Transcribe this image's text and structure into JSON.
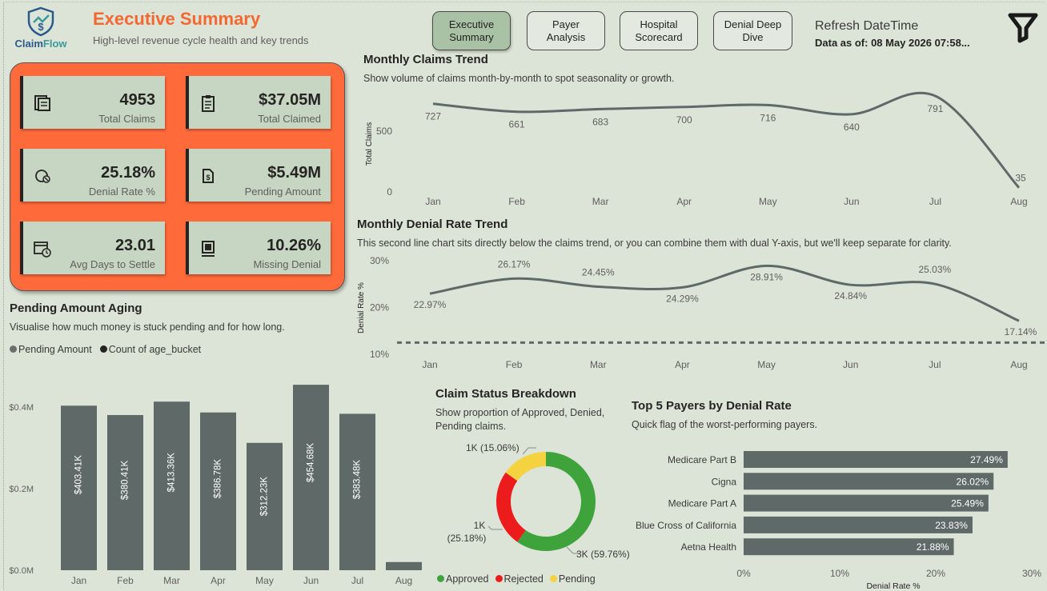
{
  "header": {
    "logo_text_a": "Claim",
    "logo_text_b": "Flow",
    "title": "Executive Summary",
    "subtitle": "High-level revenue cycle health and key trends",
    "refresh_title": "Refresh DateTime",
    "refresh_value": "Data as of: 08 May 2026 07:58..."
  },
  "nav": [
    {
      "label_line1": "Executive",
      "label_line2": "Summary",
      "active": true
    },
    {
      "label_line1": "Payer Analysis",
      "label_line2": "",
      "active": false
    },
    {
      "label_line1": "Hospital",
      "label_line2": "Scorecard",
      "active": false
    },
    {
      "label_line1": "Denial Deep",
      "label_line2": "Dive",
      "active": false
    }
  ],
  "kpis": [
    {
      "value": "4953",
      "label": "Total Claims",
      "icon": "claims-icon"
    },
    {
      "value": "$37.05M",
      "label": "Total Claimed",
      "icon": "clipboard-icon"
    },
    {
      "value": "25.18%",
      "label": "Denial Rate %",
      "icon": "denial-icon"
    },
    {
      "value": "$5.49M",
      "label": "Pending Amount",
      "icon": "pending-doc-icon"
    },
    {
      "value": "23.01",
      "label": "Avg Days to Settle",
      "icon": "calendar-clock-icon"
    },
    {
      "value": "10.26%",
      "label": "Missing Denial",
      "icon": "missing-icon"
    }
  ],
  "claims_trend": {
    "title": "Monthly Claims Trend",
    "subtitle": "Show volume of claims month-by-month to spot seasonality or growth.",
    "chart_data": {
      "type": "line",
      "categories": [
        "Jan",
        "Feb",
        "Mar",
        "Apr",
        "May",
        "Jun",
        "Jul",
        "Aug"
      ],
      "values": [
        727,
        661,
        683,
        700,
        716,
        640,
        791,
        35
      ],
      "data_labels": [
        "727",
        "661",
        "683",
        "700",
        "716",
        "640",
        "791",
        "35"
      ],
      "ylabel": "Total Claims",
      "yticks": [
        "0",
        "500"
      ],
      "ylim": [
        0,
        870
      ],
      "color": "#5f6a68"
    }
  },
  "denial_trend": {
    "title": "Monthly Denial Rate Trend",
    "subtitle": "This second line chart sits directly below the claims trend, or you can combine them with dual Y-axis, but we'll keep separate for clarity.",
    "chart_data": {
      "type": "line",
      "categories": [
        "Jan",
        "Feb",
        "Mar",
        "Apr",
        "May",
        "Jun",
        "Jul",
        "Aug"
      ],
      "values": [
        22.97,
        26.17,
        24.45,
        24.29,
        28.91,
        24.84,
        25.03,
        17.14
      ],
      "data_labels": [
        "22.97%",
        "26.17%",
        "24.45%",
        "24.29%",
        "28.91%",
        "24.84%",
        "25.03%",
        "17.14%"
      ],
      "ylabel": "Denial Rate %",
      "yticks": [
        "10%",
        "20%",
        "30%"
      ],
      "ylim": [
        10,
        30
      ],
      "reference_line": 12.5,
      "color": "#5f6a68"
    }
  },
  "aging": {
    "title": "Pending Amount Aging",
    "subtitle": "Visualise how much money is stuck pending and for how long.",
    "legend": [
      {
        "label": "Pending Amount",
        "color": "#6b6e6c"
      },
      {
        "label": "Count of age_bucket",
        "color": "#252423"
      }
    ],
    "chart_data": {
      "type": "bar",
      "categories": [
        "Jan",
        "Feb",
        "Mar",
        "Apr",
        "May",
        "Jun",
        "Jul",
        "Aug"
      ],
      "values": [
        403.41,
        380.41,
        413.36,
        386.78,
        312.23,
        454.68,
        383.48,
        20
      ],
      "data_labels": [
        "$403.41K",
        "$380.41K",
        "$413.36K",
        "$386.78K",
        "$312.23K",
        "$454.68K",
        "$383.48K",
        ""
      ],
      "yticks": [
        "$0.0M",
        "$0.2M",
        "$0.4M"
      ],
      "ylim": [
        0,
        400
      ],
      "color": "#5f6a68"
    }
  },
  "status": {
    "title": "Claim Status Breakdown",
    "subtitle_line1": "Show proportion of Approved, Denied,",
    "subtitle_line2": "Pending claims.",
    "chart_data": {
      "type": "pie",
      "slices": [
        {
          "name": "Approved",
          "value": 59.76,
          "label": "3K (59.76%)",
          "color": "#3fa33c"
        },
        {
          "name": "Rejected",
          "value": 25.18,
          "label_line1": "1K",
          "label_line2": "(25.18%)",
          "color": "#ec1c1c"
        },
        {
          "name": "Pending",
          "value": 15.06,
          "label": "1K (15.06%)",
          "color": "#f5d23f"
        }
      ]
    }
  },
  "payers": {
    "title": "Top 5 Payers by Denial Rate",
    "subtitle": "Quick flag of the worst-performing payers.",
    "chart_data": {
      "type": "bar",
      "orientation": "horizontal",
      "categories": [
        "Medicare Part B",
        "Cigna",
        "Medicare Part A",
        "Blue Cross of California",
        "Aetna Health"
      ],
      "values": [
        27.49,
        26.02,
        25.49,
        23.83,
        21.88
      ],
      "data_labels": [
        "27.49%",
        "26.02%",
        "25.49%",
        "23.83%",
        "21.88%"
      ],
      "xticks": [
        "0%",
        "10%",
        "20%",
        "30%"
      ],
      "xlim": [
        0,
        30
      ],
      "xlabel": "Denial Rate %",
      "color": "#5f6a68"
    }
  }
}
